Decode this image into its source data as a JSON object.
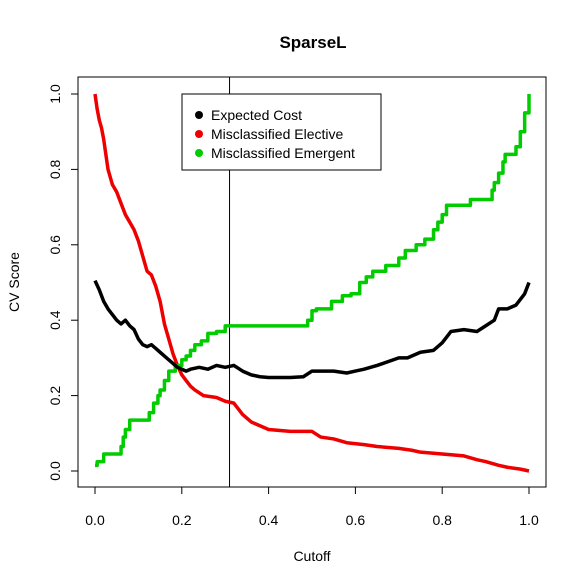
{
  "chart_data": {
    "type": "line",
    "title": "SparseL",
    "xlabel": "Cutoff",
    "ylabel": "CV Score",
    "xlim": [
      0,
      1
    ],
    "ylim": [
      0,
      1
    ],
    "x_ticks": [
      0,
      0.2,
      0.4,
      0.6,
      0.8,
      1
    ],
    "x_tick_labels": [
      "0.0",
      "0.2",
      "0.4",
      "0.6",
      "0.8",
      "1.0"
    ],
    "y_ticks": [
      0,
      0.2,
      0.4,
      0.6,
      0.8,
      1
    ],
    "y_tick_labels": [
      "0.0",
      "0.2",
      "0.4",
      "0.6",
      "0.8",
      "1.0"
    ],
    "grid": false,
    "legend_position": "top-center",
    "vline_x": 0.31,
    "series": [
      {
        "name": "Expected Cost",
        "color": "#000000",
        "step": false,
        "points": [
          [
            0,
            0.505
          ],
          [
            0.01,
            0.48
          ],
          [
            0.02,
            0.45
          ],
          [
            0.03,
            0.43
          ],
          [
            0.04,
            0.415
          ],
          [
            0.05,
            0.4
          ],
          [
            0.06,
            0.39
          ],
          [
            0.07,
            0.4
          ],
          [
            0.08,
            0.385
          ],
          [
            0.09,
            0.375
          ],
          [
            0.1,
            0.35
          ],
          [
            0.11,
            0.335
          ],
          [
            0.12,
            0.33
          ],
          [
            0.13,
            0.335
          ],
          [
            0.14,
            0.325
          ],
          [
            0.15,
            0.315
          ],
          [
            0.16,
            0.305
          ],
          [
            0.17,
            0.295
          ],
          [
            0.18,
            0.285
          ],
          [
            0.19,
            0.275
          ],
          [
            0.2,
            0.27
          ],
          [
            0.21,
            0.265
          ],
          [
            0.22,
            0.27
          ],
          [
            0.24,
            0.275
          ],
          [
            0.26,
            0.27
          ],
          [
            0.28,
            0.28
          ],
          [
            0.3,
            0.275
          ],
          [
            0.32,
            0.28
          ],
          [
            0.34,
            0.265
          ],
          [
            0.36,
            0.255
          ],
          [
            0.38,
            0.25
          ],
          [
            0.4,
            0.248
          ],
          [
            0.45,
            0.248
          ],
          [
            0.48,
            0.25
          ],
          [
            0.5,
            0.265
          ],
          [
            0.55,
            0.265
          ],
          [
            0.58,
            0.26
          ],
          [
            0.6,
            0.265
          ],
          [
            0.62,
            0.27
          ],
          [
            0.65,
            0.28
          ],
          [
            0.7,
            0.3
          ],
          [
            0.72,
            0.3
          ],
          [
            0.75,
            0.315
          ],
          [
            0.78,
            0.32
          ],
          [
            0.8,
            0.34
          ],
          [
            0.82,
            0.37
          ],
          [
            0.85,
            0.375
          ],
          [
            0.88,
            0.37
          ],
          [
            0.9,
            0.385
          ],
          [
            0.92,
            0.4
          ],
          [
            0.93,
            0.43
          ],
          [
            0.95,
            0.43
          ],
          [
            0.97,
            0.44
          ],
          [
            0.99,
            0.47
          ],
          [
            1,
            0.5
          ]
        ]
      },
      {
        "name": "Misclassified Elective",
        "color": "#ee0000",
        "step": false,
        "points": [
          [
            0,
            1.0
          ],
          [
            0.005,
            0.96
          ],
          [
            0.01,
            0.93
          ],
          [
            0.015,
            0.91
          ],
          [
            0.02,
            0.88
          ],
          [
            0.025,
            0.84
          ],
          [
            0.03,
            0.8
          ],
          [
            0.035,
            0.78
          ],
          [
            0.04,
            0.76
          ],
          [
            0.05,
            0.74
          ],
          [
            0.06,
            0.71
          ],
          [
            0.07,
            0.68
          ],
          [
            0.08,
            0.66
          ],
          [
            0.09,
            0.64
          ],
          [
            0.1,
            0.61
          ],
          [
            0.11,
            0.57
          ],
          [
            0.12,
            0.53
          ],
          [
            0.13,
            0.52
          ],
          [
            0.14,
            0.49
          ],
          [
            0.15,
            0.45
          ],
          [
            0.16,
            0.39
          ],
          [
            0.17,
            0.35
          ],
          [
            0.18,
            0.31
          ],
          [
            0.19,
            0.28
          ],
          [
            0.2,
            0.255
          ],
          [
            0.21,
            0.24
          ],
          [
            0.22,
            0.225
          ],
          [
            0.23,
            0.215
          ],
          [
            0.25,
            0.2
          ],
          [
            0.28,
            0.195
          ],
          [
            0.3,
            0.185
          ],
          [
            0.32,
            0.18
          ],
          [
            0.34,
            0.15
          ],
          [
            0.36,
            0.13
          ],
          [
            0.38,
            0.12
          ],
          [
            0.4,
            0.11
          ],
          [
            0.45,
            0.105
          ],
          [
            0.5,
            0.105
          ],
          [
            0.52,
            0.09
          ],
          [
            0.55,
            0.085
          ],
          [
            0.58,
            0.075
          ],
          [
            0.62,
            0.07
          ],
          [
            0.65,
            0.065
          ],
          [
            0.7,
            0.06
          ],
          [
            0.73,
            0.055
          ],
          [
            0.75,
            0.05
          ],
          [
            0.8,
            0.045
          ],
          [
            0.85,
            0.04
          ],
          [
            0.88,
            0.03
          ],
          [
            0.9,
            0.025
          ],
          [
            0.93,
            0.015
          ],
          [
            0.95,
            0.01
          ],
          [
            0.98,
            0.005
          ],
          [
            1,
            0.0
          ]
        ]
      },
      {
        "name": "Misclassified Emergent",
        "color": "#00cc00",
        "step": true,
        "points": [
          [
            0,
            0.015
          ],
          [
            0.005,
            0.025
          ],
          [
            0.02,
            0.045
          ],
          [
            0.06,
            0.065
          ],
          [
            0.065,
            0.09
          ],
          [
            0.07,
            0.11
          ],
          [
            0.08,
            0.135
          ],
          [
            0.125,
            0.155
          ],
          [
            0.135,
            0.18
          ],
          [
            0.145,
            0.2
          ],
          [
            0.15,
            0.215
          ],
          [
            0.16,
            0.24
          ],
          [
            0.17,
            0.265
          ],
          [
            0.185,
            0.28
          ],
          [
            0.2,
            0.295
          ],
          [
            0.21,
            0.305
          ],
          [
            0.22,
            0.32
          ],
          [
            0.23,
            0.335
          ],
          [
            0.245,
            0.345
          ],
          [
            0.26,
            0.365
          ],
          [
            0.28,
            0.37
          ],
          [
            0.3,
            0.385
          ],
          [
            0.49,
            0.4
          ],
          [
            0.5,
            0.425
          ],
          [
            0.51,
            0.43
          ],
          [
            0.545,
            0.45
          ],
          [
            0.57,
            0.465
          ],
          [
            0.59,
            0.47
          ],
          [
            0.61,
            0.5
          ],
          [
            0.625,
            0.515
          ],
          [
            0.64,
            0.53
          ],
          [
            0.67,
            0.545
          ],
          [
            0.7,
            0.565
          ],
          [
            0.715,
            0.585
          ],
          [
            0.74,
            0.6
          ],
          [
            0.76,
            0.615
          ],
          [
            0.78,
            0.64
          ],
          [
            0.79,
            0.66
          ],
          [
            0.8,
            0.68
          ],
          [
            0.81,
            0.705
          ],
          [
            0.865,
            0.72
          ],
          [
            0.915,
            0.745
          ],
          [
            0.92,
            0.765
          ],
          [
            0.93,
            0.79
          ],
          [
            0.94,
            0.82
          ],
          [
            0.945,
            0.84
          ],
          [
            0.97,
            0.86
          ],
          [
            0.98,
            0.9
          ],
          [
            0.99,
            0.95
          ],
          [
            1,
            1.0
          ]
        ]
      }
    ]
  }
}
